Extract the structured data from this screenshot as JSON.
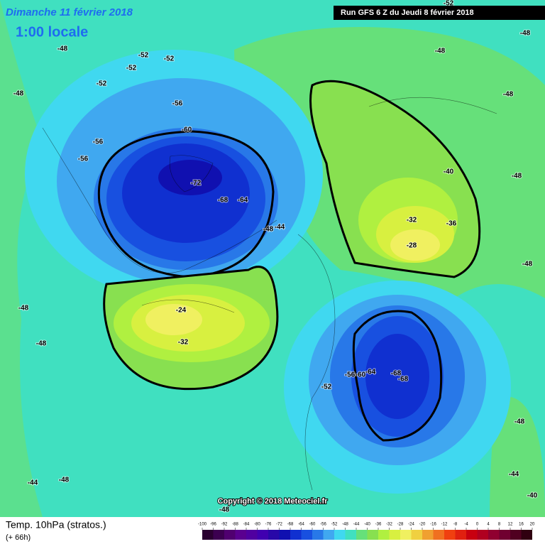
{
  "header": {
    "date": "Dimanche 11 février 2018",
    "time": "1:00 locale",
    "run": "Run GFS 6 Z du Jeudi 8 février 2018"
  },
  "copyright": "Copyright © 2018 Meteociel.fr",
  "footer": {
    "variable": "Temp. 10hPa (stratos.)",
    "lead": "(+ 66h)"
  },
  "colorbar": {
    "ticks": [
      -100,
      -96,
      -92,
      -88,
      -84,
      -80,
      -76,
      -72,
      -68,
      -64,
      -60,
      -56,
      -52,
      -48,
      -44,
      -40,
      -36,
      -32,
      -28,
      -24,
      -20,
      -16,
      -12,
      -8,
      -4,
      0,
      4,
      8,
      12,
      16,
      20
    ],
    "colors": [
      "#2a0030",
      "#3c0050",
      "#500070",
      "#5a0090",
      "#5000a0",
      "#4000b0",
      "#2808a8",
      "#1010b0",
      "#1030d0",
      "#1850e0",
      "#2878e8",
      "#40a8f0",
      "#40d8f0",
      "#40e0c0",
      "#66e07a",
      "#88e050",
      "#b0f040",
      "#d8f040",
      "#f0f060",
      "#f0d040",
      "#f0a030",
      "#f07020",
      "#f04010",
      "#e02010",
      "#c80010",
      "#b00020",
      "#900030",
      "#700030",
      "#500020",
      "#300010"
    ]
  },
  "contour_labels": [
    -48,
    -52,
    -52,
    -52,
    -52,
    -48,
    -56,
    -56,
    -56,
    -60,
    -72,
    -68,
    -64,
    -48,
    -44,
    -48,
    -52,
    -48,
    -48,
    -40,
    -48,
    -32,
    -36,
    -28,
    -48,
    -48,
    -32,
    -24,
    -48,
    -52,
    -56,
    -60,
    -64,
    -68,
    -68,
    -48,
    -44,
    -44,
    -48,
    -40,
    -48
  ]
}
